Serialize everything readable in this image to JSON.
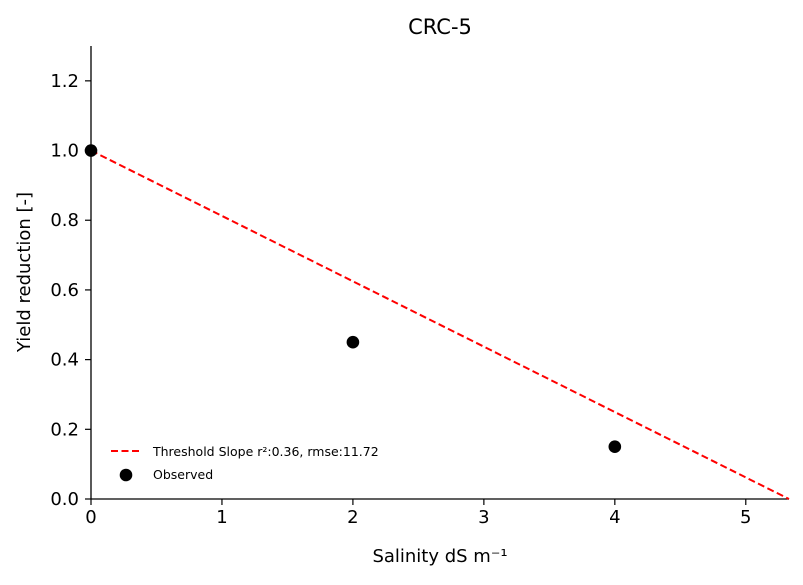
{
  "chart_data": {
    "type": "scatter",
    "title": "CRC-5",
    "xlabel": "Salinity dS m⁻¹",
    "ylabel": "Yield reduction [-]",
    "xlim": [
      0,
      5.33
    ],
    "ylim": [
      0,
      1.3
    ],
    "x_ticks": [
      0,
      1,
      2,
      3,
      4,
      5
    ],
    "y_ticks": [
      "0.0",
      "0.2",
      "0.4",
      "0.6",
      "0.8",
      "1.0",
      "1.2"
    ],
    "grid": false,
    "legend_position": "lower-left",
    "series": [
      {
        "name": "Threshold Slope r²:0.36, rmse:11.72",
        "kind": "line",
        "style": "dashed",
        "color": "#ff0000",
        "x": [
          0,
          5.33
        ],
        "y": [
          1.0,
          0.0
        ]
      },
      {
        "name": "Observed",
        "kind": "scatter",
        "color": "#000000",
        "x": [
          0,
          2,
          4
        ],
        "y": [
          1.0,
          0.45,
          0.15
        ]
      }
    ]
  }
}
